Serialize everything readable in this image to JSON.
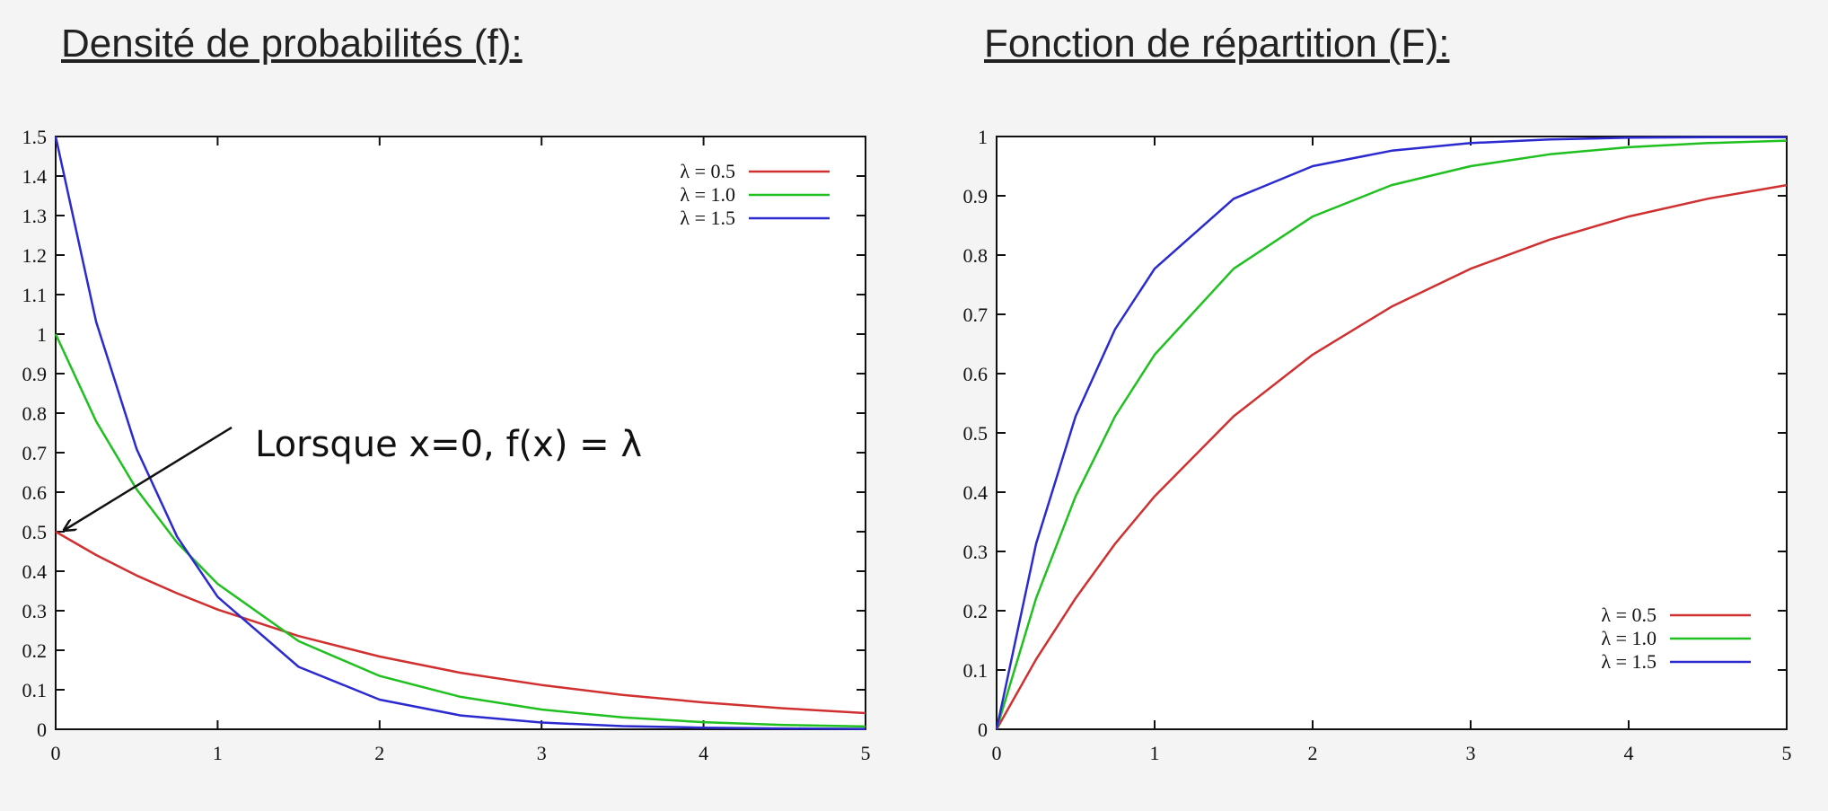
{
  "chart_data": [
    {
      "type": "line",
      "title": "Densité de probabilités (f):",
      "xlabel": "",
      "ylabel": "",
      "xlim": [
        0,
        5
      ],
      "ylim": [
        0,
        1.5
      ],
      "x_ticks": [
        "0",
        "1",
        "2",
        "3",
        "4",
        "5"
      ],
      "y_ticks": [
        "0",
        "0.1",
        "0.2",
        "0.3",
        "0.4",
        "0.5",
        "0.6",
        "0.7",
        "0.8",
        "0.9",
        "1",
        "1.1",
        "1.2",
        "1.3",
        "1.4",
        "1.5"
      ],
      "legend_position": "top-right",
      "grid": false,
      "x": [
        0,
        0.25,
        0.5,
        0.75,
        1,
        1.5,
        2,
        2.5,
        3,
        3.5,
        4,
        4.5,
        5
      ],
      "series": [
        {
          "name": "λ = 0.5",
          "color": "#d03030",
          "values": [
            0.5,
            0.441,
            0.389,
            0.344,
            0.303,
            0.236,
            0.184,
            0.143,
            0.112,
            0.087,
            0.068,
            0.053,
            0.041
          ]
        },
        {
          "name": "λ = 1.0",
          "color": "#20c020",
          "values": [
            1.0,
            0.779,
            0.607,
            0.472,
            0.368,
            0.223,
            0.135,
            0.082,
            0.05,
            0.03,
            0.018,
            0.011,
            0.007
          ]
        },
        {
          "name": "λ = 1.5",
          "color": "#2a2ad0",
          "values": [
            1.5,
            1.031,
            0.709,
            0.487,
            0.335,
            0.158,
            0.075,
            0.035,
            0.017,
            0.008,
            0.004,
            0.002,
            0.001
          ]
        }
      ],
      "annotation": {
        "text": "Lorsque x=0, f(x) = λ",
        "x": 0,
        "y": 0.5
      }
    },
    {
      "type": "line",
      "title": "Fonction de répartition (F):",
      "xlabel": "",
      "ylabel": "",
      "xlim": [
        0,
        5
      ],
      "ylim": [
        0,
        1
      ],
      "x_ticks": [
        "0",
        "1",
        "2",
        "3",
        "4",
        "5"
      ],
      "y_ticks": [
        "0",
        "0.1",
        "0.2",
        "0.3",
        "0.4",
        "0.5",
        "0.6",
        "0.7",
        "0.8",
        "0.9",
        "1"
      ],
      "legend_position": "bottom-right",
      "grid": false,
      "x": [
        0,
        0.25,
        0.5,
        0.75,
        1,
        1.5,
        2,
        2.5,
        3,
        3.5,
        4,
        4.5,
        5
      ],
      "series": [
        {
          "name": "λ = 0.5",
          "color": "#d03030",
          "values": [
            0,
            0.118,
            0.221,
            0.313,
            0.393,
            0.528,
            0.632,
            0.713,
            0.777,
            0.826,
            0.865,
            0.895,
            0.918
          ]
        },
        {
          "name": "λ = 1.0",
          "color": "#20c020",
          "values": [
            0,
            0.221,
            0.393,
            0.528,
            0.632,
            0.777,
            0.865,
            0.918,
            0.95,
            0.97,
            0.982,
            0.989,
            0.993
          ]
        },
        {
          "name": "λ = 1.5",
          "color": "#2a2ad0",
          "values": [
            0,
            0.313,
            0.528,
            0.675,
            0.777,
            0.895,
            0.95,
            0.976,
            0.989,
            0.995,
            0.998,
            0.999,
            0.999
          ]
        }
      ]
    }
  ]
}
